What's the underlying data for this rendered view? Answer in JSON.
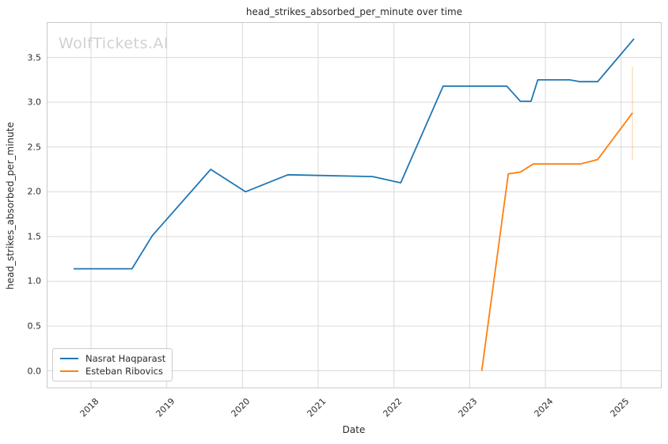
{
  "chart_data": {
    "type": "line",
    "title": "head_strikes_absorbed_per_minute over time",
    "xlabel": "Date",
    "ylabel": "head_strikes_absorbed_per_minute",
    "watermark": "WolfTickets.AI",
    "xlim": [
      2017.42,
      2025.53
    ],
    "ylim": [
      -0.19,
      3.89
    ],
    "x_ticks": [
      2018,
      2019,
      2020,
      2021,
      2022,
      2023,
      2024,
      2025
    ],
    "y_ticks": [
      0.0,
      0.5,
      1.0,
      1.5,
      2.0,
      2.5,
      3.0,
      3.5
    ],
    "grid": true,
    "grid_color": "#d9d9d9",
    "spine_color": "#c9c9c9",
    "legend_position": "lower-left",
    "series": [
      {
        "name": "Nasrat Haqparast",
        "color": "#1f77b4",
        "points": [
          [
            2017.77,
            1.14
          ],
          [
            2018.54,
            1.14
          ],
          [
            2018.81,
            1.51
          ],
          [
            2019.58,
            2.25
          ],
          [
            2020.04,
            2.0
          ],
          [
            2020.6,
            2.19
          ],
          [
            2021.72,
            2.17
          ],
          [
            2022.09,
            2.1
          ],
          [
            2022.65,
            3.18
          ],
          [
            2023.49,
            3.18
          ],
          [
            2023.67,
            3.01
          ],
          [
            2023.81,
            3.01
          ],
          [
            2023.9,
            3.25
          ],
          [
            2024.32,
            3.25
          ],
          [
            2024.46,
            3.23
          ],
          [
            2024.69,
            3.23
          ],
          [
            2025.17,
            3.71
          ]
        ]
      },
      {
        "name": "Esteban Ribovics",
        "color": "#ff7f0e",
        "points": [
          [
            2023.16,
            0.0
          ],
          [
            2023.51,
            2.2
          ],
          [
            2023.67,
            2.22
          ],
          [
            2023.84,
            2.31
          ],
          [
            2024.46,
            2.31
          ],
          [
            2024.69,
            2.36
          ],
          [
            2025.15,
            2.88
          ]
        ]
      }
    ],
    "error_bar": {
      "series": "Esteban Ribovics",
      "x": 2025.15,
      "y_low": 2.35,
      "y_high": 3.4,
      "color": "#ff7f0e",
      "opacity": 0.25
    }
  }
}
